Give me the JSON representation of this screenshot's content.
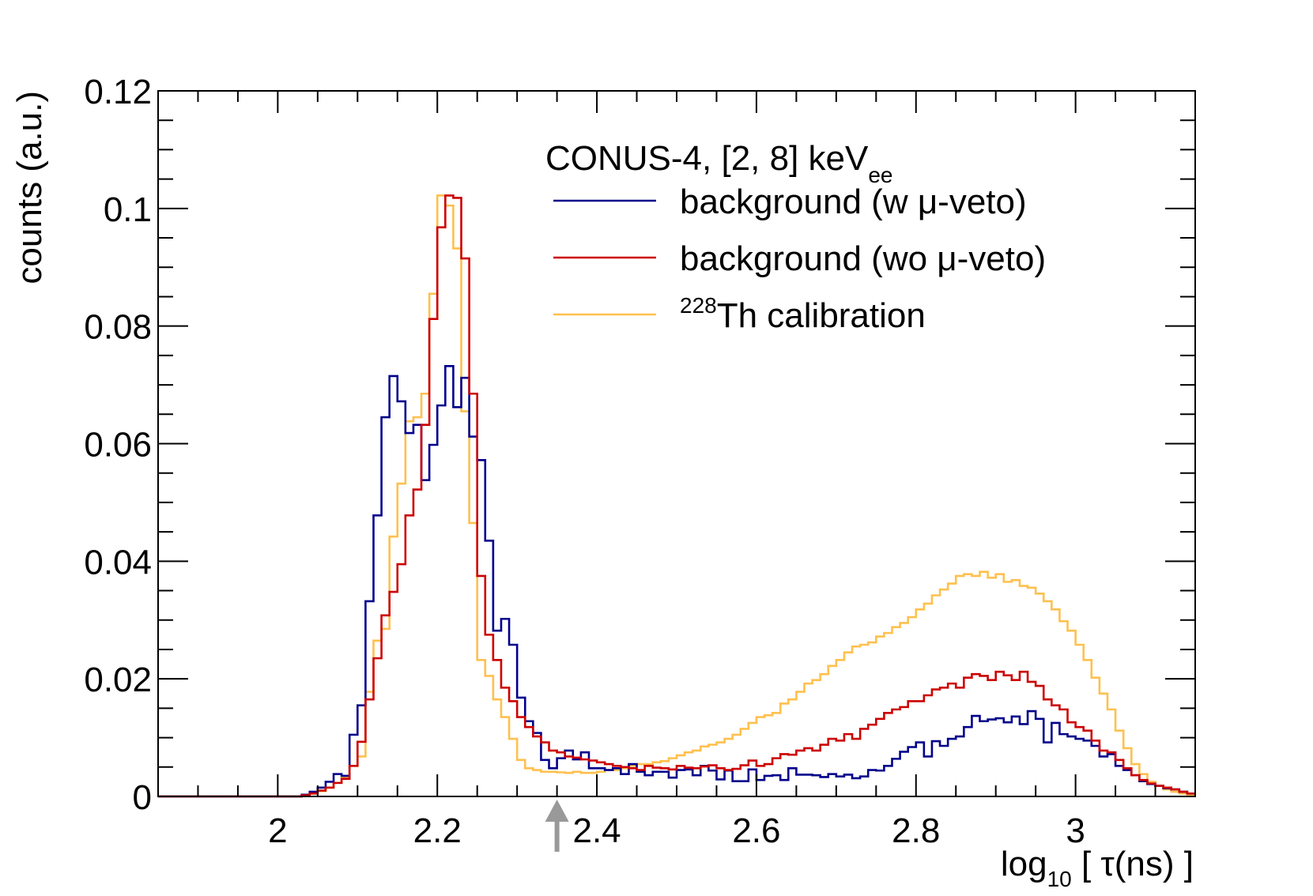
{
  "chart_data": {
    "type": "line",
    "style": "step-histogram",
    "title": "",
    "xlabel": "log10 [ τ(ns) ]",
    "xlabel_parts": {
      "main": "log",
      "sub": "10",
      "rest": " [ τ(ns) ]"
    },
    "ylabel": "counts (a.u.)",
    "xlim": [
      1.85,
      3.15
    ],
    "ylim": [
      0,
      0.12
    ],
    "x_tick_labels": [
      "2",
      "2.2",
      "2.4",
      "2.6",
      "2.8",
      "3"
    ],
    "x_ticks": [
      2.0,
      2.2,
      2.4,
      2.6,
      2.8,
      3.0
    ],
    "y_tick_labels": [
      "0",
      "0.02",
      "0.04",
      "0.06",
      "0.08",
      "0.1",
      "0.12"
    ],
    "y_ticks": [
      0,
      0.02,
      0.04,
      0.06,
      0.08,
      0.1,
      0.12
    ],
    "grid": false,
    "legend_position": "top-right",
    "legend_title": {
      "main": "CONUS-4, [2, 8] keV",
      "sub": "ee"
    },
    "marker_annotation": {
      "x": 2.35,
      "symbol": "↑",
      "color": "#999999"
    },
    "bins": {
      "start": 1.85,
      "width": 0.01,
      "count": 130
    },
    "series": [
      {
        "name": "background (w μ-veto)",
        "label_parts": {
          "pre": "",
          "sup": "",
          "main": "background (w μ-veto)"
        },
        "color": "#00008b",
        "values": [
          0,
          0,
          0,
          0,
          0,
          0,
          0,
          0,
          0,
          0,
          0,
          0,
          0,
          0,
          0,
          0,
          0,
          0,
          0.0003,
          0.0008,
          0.0015,
          0.0025,
          0.0038,
          0.0035,
          0.0105,
          0.0155,
          0.0332,
          0.0478,
          0.0645,
          0.0715,
          0.0672,
          0.0618,
          0.0632,
          0.0538,
          0.0598,
          0.0665,
          0.0732,
          0.0662,
          0.0712,
          0.0612,
          0.0572,
          0.0435,
          0.0282,
          0.0302,
          0.0258,
          0.0168,
          0.0128,
          0.0108,
          0.0062,
          0.0048,
          0.0065,
          0.0078,
          0.0063,
          0.0075,
          0.0048,
          0.0048,
          0.0045,
          0.0048,
          0.0038,
          0.0055,
          0.0042,
          0.0036,
          0.0042,
          0.0042,
          0.0032,
          0.0045,
          0.0046,
          0.0036,
          0.0052,
          0.0044,
          0.0029,
          0.0044,
          0.0026,
          0.0026,
          0.0046,
          0.0028,
          0.0035,
          0.0036,
          0.0028,
          0.0048,
          0.0037,
          0.0037,
          0.0036,
          0.0033,
          0.0038,
          0.0034,
          0.0037,
          0.0031,
          0.0034,
          0.0045,
          0.0044,
          0.0052,
          0.0064,
          0.0076,
          0.0084,
          0.0092,
          0.0068,
          0.0094,
          0.0086,
          0.0098,
          0.0102,
          0.0118,
          0.0137,
          0.0128,
          0.0131,
          0.0133,
          0.0126,
          0.0136,
          0.0123,
          0.0145,
          0.0132,
          0.0092,
          0.0125,
          0.0106,
          0.0102,
          0.0098,
          0.0095,
          0.0086,
          0.0068,
          0.0072,
          0.0052,
          0.0045,
          0.0036,
          0.0026,
          0.0021,
          0.0018,
          0.0014,
          0.0012,
          0.0008,
          0.0005
        ]
      },
      {
        "name": "background (wo μ-veto)",
        "label_parts": {
          "pre": "",
          "sup": "",
          "main": "background (wo μ-veto)"
        },
        "color": "#cc0000",
        "values": [
          0,
          0,
          0,
          0,
          0,
          0,
          0,
          0,
          0,
          0,
          0,
          0,
          0,
          0,
          0,
          0,
          0,
          0,
          0.0002,
          0.0005,
          0.001,
          0.0015,
          0.0023,
          0.003,
          0.0052,
          0.0093,
          0.0165,
          0.0235,
          0.0308,
          0.0348,
          0.0395,
          0.0478,
          0.0522,
          0.0632,
          0.0812,
          0.0968,
          0.1022,
          0.1018,
          0.0915,
          0.0685,
          0.0375,
          0.0275,
          0.0232,
          0.0185,
          0.0162,
          0.0135,
          0.0118,
          0.0102,
          0.0092,
          0.0078,
          0.0075,
          0.0068,
          0.0066,
          0.0063,
          0.0061,
          0.0058,
          0.0055,
          0.0052,
          0.005,
          0.0048,
          0.0045,
          0.0052,
          0.0049,
          0.0048,
          0.0046,
          0.0052,
          0.0049,
          0.0048,
          0.0051,
          0.0053,
          0.0048,
          0.0045,
          0.0047,
          0.0053,
          0.0061,
          0.0052,
          0.0055,
          0.0065,
          0.0072,
          0.0071,
          0.0078,
          0.0082,
          0.0078,
          0.0088,
          0.0098,
          0.0095,
          0.0106,
          0.0098,
          0.0115,
          0.0122,
          0.0132,
          0.0142,
          0.0148,
          0.0152,
          0.0162,
          0.0162,
          0.0172,
          0.0182,
          0.0185,
          0.0192,
          0.0185,
          0.0202,
          0.0208,
          0.0205,
          0.0198,
          0.0212,
          0.0206,
          0.0198,
          0.0212,
          0.0195,
          0.0188,
          0.0165,
          0.0155,
          0.0148,
          0.0126,
          0.0118,
          0.0112,
          0.0095,
          0.0078,
          0.0075,
          0.0062,
          0.0048,
          0.0036,
          0.0028,
          0.0022,
          0.0018,
          0.0015,
          0.0012,
          0.0008,
          0.0005
        ]
      },
      {
        "name": "228Th calibration",
        "label_parts": {
          "pre": "",
          "sup": "228",
          "main": "Th calibration"
        },
        "color": "#ffc04d",
        "values": [
          0,
          0,
          0,
          0,
          0,
          0,
          0,
          0,
          0,
          0,
          0,
          0,
          0,
          0,
          0,
          0,
          0,
          0,
          0.0002,
          0.0005,
          0.0009,
          0.0015,
          0.0023,
          0.0033,
          0.0052,
          0.0068,
          0.0178,
          0.0265,
          0.0285,
          0.0442,
          0.0532,
          0.0638,
          0.0645,
          0.0685,
          0.0855,
          0.1022,
          0.1005,
          0.0932,
          0.0655,
          0.0465,
          0.0232,
          0.0205,
          0.0165,
          0.0135,
          0.0098,
          0.0062,
          0.0048,
          0.0045,
          0.0042,
          0.0042,
          0.0041,
          0.004,
          0.0042,
          0.004,
          0.004,
          0.0042,
          0.0045,
          0.0045,
          0.0048,
          0.0052,
          0.0055,
          0.0055,
          0.0058,
          0.006,
          0.0065,
          0.007,
          0.0075,
          0.0078,
          0.0085,
          0.0088,
          0.0092,
          0.0098,
          0.0105,
          0.0115,
          0.0125,
          0.0135,
          0.0138,
          0.0142,
          0.0158,
          0.0165,
          0.0178,
          0.0192,
          0.0198,
          0.0208,
          0.0222,
          0.0232,
          0.0245,
          0.0255,
          0.0258,
          0.0262,
          0.0272,
          0.0278,
          0.0288,
          0.0295,
          0.0305,
          0.0318,
          0.0328,
          0.0342,
          0.0352,
          0.0362,
          0.0375,
          0.0378,
          0.0375,
          0.0382,
          0.0372,
          0.0378,
          0.0365,
          0.0368,
          0.0358,
          0.0355,
          0.0345,
          0.0332,
          0.0318,
          0.0298,
          0.0282,
          0.0258,
          0.0232,
          0.0202,
          0.0175,
          0.0148,
          0.0112,
          0.0082,
          0.0055,
          0.0038,
          0.0025,
          0.0018,
          0.0012,
          0.0008,
          0.0005,
          0.0003
        ]
      }
    ]
  }
}
